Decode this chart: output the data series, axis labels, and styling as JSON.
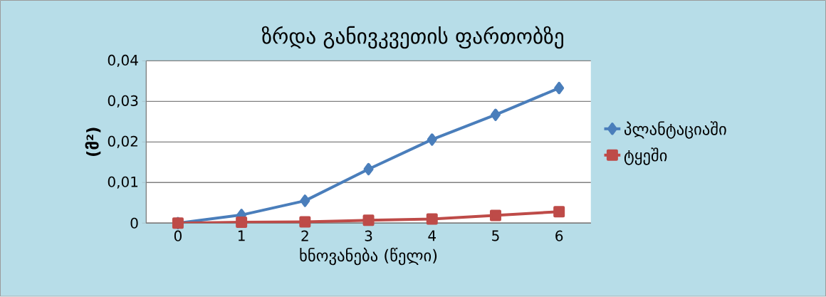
{
  "chart_data": {
    "type": "line",
    "title": "ზრდა განივკვეთის ფართობზე",
    "xlabel": "ხნოვანება (წელი)",
    "ylabel": "(მ²)",
    "categories": [
      "0",
      "1",
      "2",
      "3",
      "4",
      "5",
      "6"
    ],
    "series": [
      {
        "name": "პლანტაციაში",
        "color": "#4a7ebb",
        "marker": "diamond",
        "values": [
          0,
          0.002,
          0.0055,
          0.0133,
          0.0206,
          0.0267,
          0.0333
        ]
      },
      {
        "name": "ტყეში",
        "color": "#be4b48",
        "marker": "square",
        "values": [
          0,
          0.0002,
          0.0003,
          0.0007,
          0.001,
          0.0019,
          0.0028
        ]
      }
    ],
    "ylim": [
      0,
      0.04
    ],
    "yticks": [
      {
        "value": 0,
        "label": "0"
      },
      {
        "value": 0.01,
        "label": "0,01"
      },
      {
        "value": 0.02,
        "label": "0,02"
      },
      {
        "value": 0.03,
        "label": "0,03"
      },
      {
        "value": 0.04,
        "label": "0,04"
      }
    ],
    "grid": "y",
    "legend": "right",
    "line_style": "solid"
  }
}
